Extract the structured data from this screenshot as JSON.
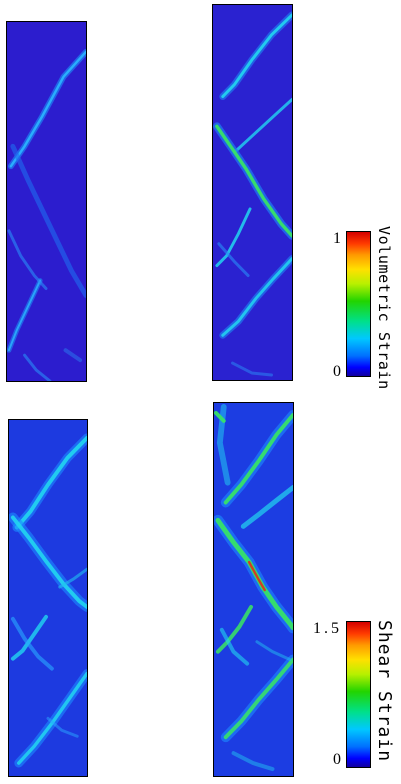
{
  "colorbars": {
    "volumetric": {
      "label": "Volumetric Strain",
      "max": "1",
      "min": "0"
    },
    "shear": {
      "label": "Shear Strain",
      "max": "1.5",
      "min": "0"
    }
  },
  "colors": {
    "field_low": "#2a1fd0",
    "field_low_shear": "#1d3ae0",
    "band_cyan": "#22d6f0",
    "band_green": "#39e860",
    "band_peak": "#e0301a"
  }
}
